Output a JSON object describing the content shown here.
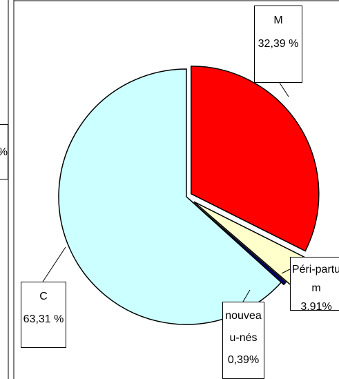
{
  "fragment_label": "%",
  "chart_data": {
    "type": "pie",
    "categories": [
      "M",
      "Péri-partum",
      "nouveau-nés",
      "C"
    ],
    "values": [
      32.39,
      3.91,
      0.39,
      63.31
    ],
    "value_labels": [
      "32,39 %",
      "3,91%",
      "0,39%",
      "63,31 %"
    ],
    "colors": [
      "#ff0000",
      "#ffffcc",
      "#000080",
      "#ccffff"
    ],
    "exploded": [
      true,
      true,
      true,
      false
    ]
  }
}
